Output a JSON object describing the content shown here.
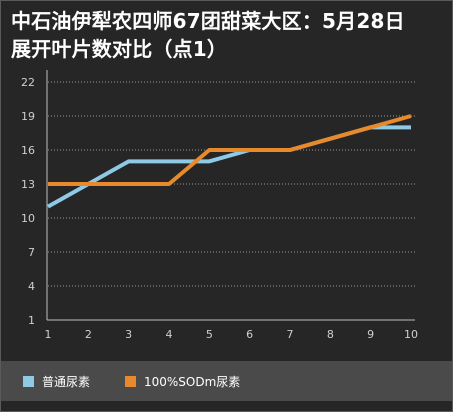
{
  "chart_data": {
    "type": "line",
    "title_line1": "中石油伊犁农四师67团甜菜大区：5月28日",
    "title_line2": "展开叶片数对比（点1）",
    "categories": [
      "1",
      "2",
      "3",
      "4",
      "5",
      "6",
      "7",
      "8",
      "9",
      "10"
    ],
    "series": [
      {
        "name": "普通尿素",
        "color": "#8ecae6",
        "values": [
          11,
          13,
          15,
          15,
          15,
          16,
          16,
          17,
          18,
          18
        ]
      },
      {
        "name": "100%SODm尿素",
        "color": "#e8892b",
        "values": [
          13,
          13,
          13,
          13,
          16,
          16,
          16,
          17,
          18,
          19
        ]
      }
    ],
    "ylim": [
      1,
      22
    ],
    "yticks": [
      "1",
      "4",
      "7",
      "10",
      "13",
      "16",
      "19",
      "22"
    ],
    "grid": "horizontal dotted",
    "legend": "bottom"
  }
}
